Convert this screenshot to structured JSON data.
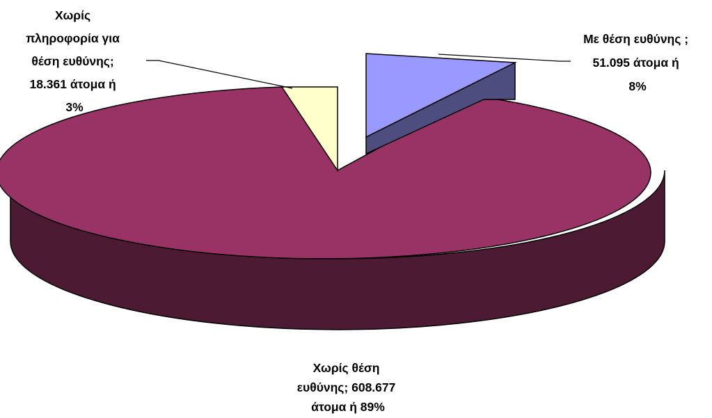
{
  "chart_data": {
    "type": "pie",
    "three_d": true,
    "exploded_slice": "Με θέση ευθύνης",
    "slices": [
      {
        "name": "Με θέση ευθύνης",
        "value": 51095,
        "percent": 8,
        "color": "#9999ff",
        "label_lines": [
          "Με θέση ευθύνης ;",
          "51.095  άτομα  ή",
          "8%"
        ]
      },
      {
        "name": "Χωρίς θέση ευθύνης",
        "value": 608677,
        "percent": 89,
        "color": "#993366",
        "label_lines": [
          "Χωρίς θέση",
          "ευθύνης;  608.677",
          "άτομα  ή 89%"
        ]
      },
      {
        "name": "Χωρίς πληροφορία για θέση ευθύνης",
        "value": 18361,
        "percent": 3,
        "color": "#ffffcc",
        "label_lines": [
          "Χωρίς",
          "πληροφορία για",
          "θέση ευθύνης;",
          "18.361 άτομα  ή",
          "3%"
        ]
      }
    ],
    "side_colors": {
      "Με θέση ευθύνης": "#4d4d80",
      "Χωρίς θέση ευθύνης": "#4d1a33"
    }
  }
}
